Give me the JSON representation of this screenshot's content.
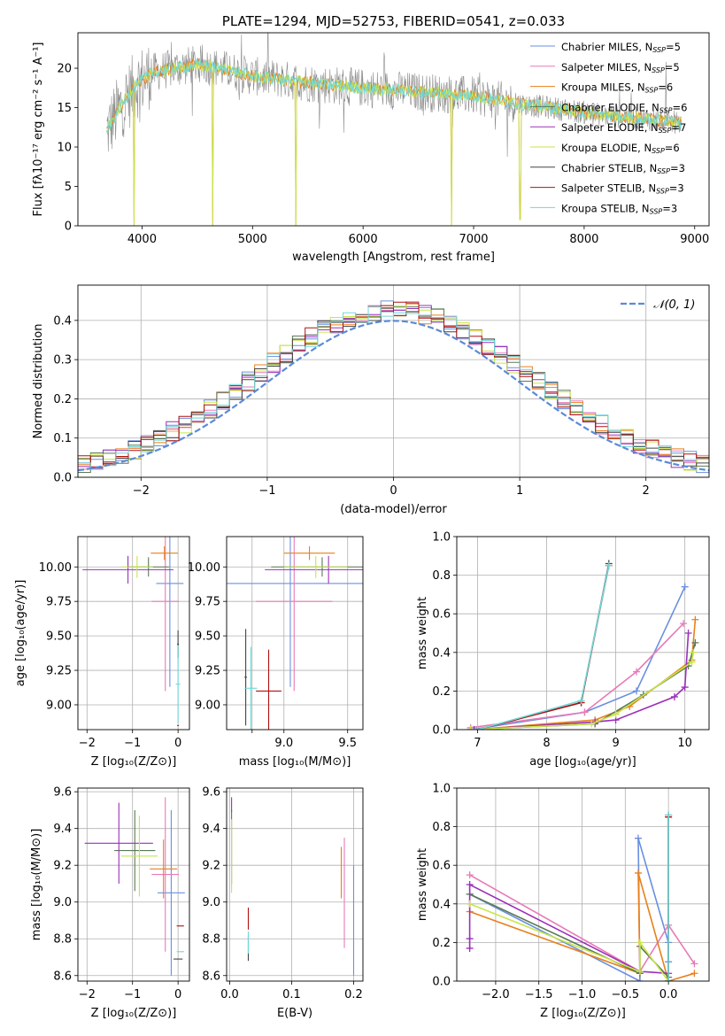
{
  "colors": {
    "Chabrier MILES": "#6a8fe0",
    "Salpeter MILES": "#e87ab8",
    "Kroupa MILES": "#e8801e",
    "Chabrier ELODIE": "#5a7a55",
    "Salpeter ELODIE": "#9b30b8",
    "Kroupa ELODIE": "#c8e64a",
    "Chabrier STELIB": "#444444",
    "Salpeter STELIB": "#b01010",
    "Kroupa STELIB": "#70d8d8",
    "normal": "#5b8ad8",
    "grey_spectrum": "#8c8c8c"
  },
  "chart_data": [
    {
      "id": "spectrum",
      "type": "line",
      "title": "PLATE=1294, MJD=52753, FIBERID=0541, z=0.033",
      "xlabel": "wavelength [Angstrom, rest frame]",
      "ylabel": "Flux [fλ10⁻¹⁷ erg cm⁻² s⁻¹ A⁻¹]",
      "xlim": [
        3420,
        9130
      ],
      "ylim": [
        0,
        24.5
      ],
      "xticks": [
        4000,
        5000,
        6000,
        7000,
        8000,
        9000
      ],
      "yticks": [
        0,
        5,
        10,
        15,
        20
      ],
      "grid": false,
      "legend_position": "top-right",
      "legend": [
        {
          "label": "Chabrier MILES, N",
          "sub": "SSP",
          "value": "=5"
        },
        {
          "label": "Salpeter MILES, N",
          "sub": "SSP",
          "value": "=5"
        },
        {
          "label": "Kroupa MILES, N",
          "sub": "SSP",
          "value": "=6"
        },
        {
          "label": "Chabrier ELODIE, N",
          "sub": "SSP",
          "value": "=6"
        },
        {
          "label": "Salpeter ELODIE, N",
          "sub": "SSP",
          "value": "=7"
        },
        {
          "label": "Kroupa ELODIE, N",
          "sub": "SSP",
          "value": "=6"
        },
        {
          "label": "Chabrier STELIB, N",
          "sub": "SSP",
          "value": "=3"
        },
        {
          "label": "Salpeter STELIB, N",
          "sub": "SSP",
          "value": "=3"
        },
        {
          "label": "Kroupa STELIB, N",
          "sub": "SSP",
          "value": "=3"
        }
      ],
      "continuum": [
        [
          3680,
          12
        ],
        [
          3800,
          15
        ],
        [
          3950,
          18
        ],
        [
          4100,
          19.5
        ],
        [
          4300,
          20
        ],
        [
          4500,
          20.5
        ],
        [
          4700,
          20
        ],
        [
          5000,
          19
        ],
        [
          5300,
          18.5
        ],
        [
          5600,
          18
        ],
        [
          6000,
          17.5
        ],
        [
          6500,
          17
        ],
        [
          7000,
          16.5
        ],
        [
          7400,
          15.5
        ],
        [
          7800,
          14.8
        ],
        [
          8200,
          14
        ],
        [
          8600,
          13.5
        ],
        [
          8900,
          13
        ]
      ],
      "dips": [
        [
          3930,
          0
        ],
        [
          4640,
          0
        ],
        [
          5390,
          0
        ],
        [
          6800,
          0
        ],
        [
          7420,
          0.8
        ]
      ]
    },
    {
      "id": "residuals",
      "type": "bar",
      "xlabel": "(data-model)/error",
      "ylabel": "Normed distribution",
      "xlim": [
        -2.5,
        2.5
      ],
      "ylim": [
        0,
        0.49
      ],
      "xticks": [
        -2,
        -1,
        0,
        1,
        2
      ],
      "yticks": [
        0.0,
        0.1,
        0.2,
        0.3,
        0.4
      ],
      "grid": true,
      "legend_position": "top-right",
      "legend": [
        "𝒩(0, 1)"
      ],
      "bin_width": 0.1,
      "bin_start": -2.5
    },
    {
      "id": "age-vs-Z",
      "type": "scatter",
      "xlabel": "Z [log₁₀(Z/Z⊙)]",
      "ylabel": "age  [log₁₀(age/yr)]",
      "xlim": [
        -2.2,
        0.25
      ],
      "ylim": [
        8.82,
        10.22
      ],
      "xticks": [
        -2,
        -1,
        0
      ],
      "yticks": [
        9.0,
        9.25,
        9.5,
        9.75,
        10.0
      ],
      "grid": true,
      "points": [
        {
          "model": "Chabrier MILES",
          "x": -0.18,
          "y": 9.88,
          "xerr": 0.3,
          "yerr": 0.75
        },
        {
          "model": "Salpeter MILES",
          "x": -0.28,
          "y": 9.75,
          "xerr": 0.3,
          "yerr": 0.65
        },
        {
          "model": "Kroupa MILES",
          "x": -0.3,
          "y": 10.1,
          "xerr": 0.3,
          "yerr": 0.05
        },
        {
          "model": "Chabrier ELODIE",
          "x": -0.65,
          "y": 10.0,
          "xerr": 0.45,
          "yerr": 0.07
        },
        {
          "model": "Salpeter ELODIE",
          "x": -1.1,
          "y": 9.98,
          "xerr": 1.0,
          "yerr": 0.1
        },
        {
          "model": "Kroupa ELODIE",
          "x": -0.9,
          "y": 10.0,
          "xerr": 0.35,
          "yerr": 0.08
        },
        {
          "model": "Chabrier STELIB",
          "x": 0.0,
          "y": 9.44,
          "xerr": 0.02,
          "yerr": 0.1
        },
        {
          "model": "Salpeter STELIB",
          "x": 0.0,
          "y": 8.85,
          "xerr": 0.02,
          "yerr": 0.0
        },
        {
          "model": "Kroupa STELIB",
          "x": 0.0,
          "y": 9.15,
          "xerr": 0.05,
          "yerr": 0.28
        }
      ]
    },
    {
      "id": "age-vs-mass",
      "type": "scatter",
      "xlabel": "mass [log₁₀(M/M⊙)]",
      "ylabel": "",
      "xlim": [
        8.55,
        9.62
      ],
      "ylim": [
        8.82,
        10.22
      ],
      "xticks": [
        9.0,
        9.5
      ],
      "xticklabels": [
        "9.0",
        "9.5"
      ],
      "extra_xtick": {
        "value": 8.75,
        "label": ""
      },
      "yticks": [
        9.0,
        9.25,
        9.5,
        9.75,
        10.0
      ],
      "grid": true,
      "points": [
        {
          "model": "Chabrier MILES",
          "x": 9.05,
          "y": 9.88,
          "xerr": 0.6,
          "yerr": 0.75
        },
        {
          "model": "Salpeter MILES",
          "x": 9.08,
          "y": 9.75,
          "xerr": 0.3,
          "yerr": 0.65
        },
        {
          "model": "Kroupa MILES",
          "x": 9.2,
          "y": 10.1,
          "xerr": 0.2,
          "yerr": 0.05
        },
        {
          "model": "Chabrier ELODIE",
          "x": 9.3,
          "y": 10.0,
          "xerr": 0.4,
          "yerr": 0.07
        },
        {
          "model": "Salpeter ELODIE",
          "x": 9.35,
          "y": 9.98,
          "xerr": 0.5,
          "yerr": 0.1
        },
        {
          "model": "Kroupa ELODIE",
          "x": 9.25,
          "y": 10.0,
          "xerr": 0.25,
          "yerr": 0.08
        },
        {
          "model": "Chabrier STELIB",
          "x": 8.7,
          "y": 9.2,
          "xerr": 0.01,
          "yerr": 0.35
        },
        {
          "model": "Salpeter STELIB",
          "x": 8.88,
          "y": 9.1,
          "xerr": 0.1,
          "yerr": 0.3
        },
        {
          "model": "Kroupa STELIB",
          "x": 8.74,
          "y": 9.12,
          "xerr": 0.05,
          "yerr": 0.3
        }
      ]
    },
    {
      "id": "mass-weight-vs-age",
      "type": "line",
      "xlabel": "age  [log₁₀(age/yr)]",
      "ylabel": "mass weight",
      "xlim": [
        6.7,
        10.35
      ],
      "ylim": [
        0,
        1.0
      ],
      "xticks": [
        7,
        8,
        9,
        10
      ],
      "yticks": [
        0.0,
        0.2,
        0.4,
        0.6,
        0.8,
        1.0
      ],
      "grid": true,
      "series": [
        {
          "model": "Chabrier MILES",
          "x": [
            6.9,
            8.55,
            9.3,
            10.0
          ],
          "y": [
            0.0,
            0.09,
            0.2,
            0.74
          ]
        },
        {
          "model": "Salpeter MILES",
          "x": [
            6.9,
            8.55,
            9.3,
            9.98
          ],
          "y": [
            0.01,
            0.09,
            0.3,
            0.55
          ]
        },
        {
          "model": "Kroupa MILES",
          "x": [
            6.95,
            8.7,
            9.2,
            10.1,
            10.15
          ],
          "y": [
            0.0,
            0.05,
            0.12,
            0.36,
            0.57
          ]
        },
        {
          "model": "Chabrier ELODIE",
          "x": [
            6.9,
            8.7,
            9.4,
            10.05,
            10.15
          ],
          "y": [
            0.0,
            0.03,
            0.18,
            0.33,
            0.45
          ]
        },
        {
          "model": "Salpeter ELODIE",
          "x": [
            6.95,
            8.7,
            9.0,
            9.85,
            10.0,
            10.05
          ],
          "y": [
            0.0,
            0.04,
            0.05,
            0.17,
            0.22,
            0.5
          ]
        },
        {
          "model": "Kroupa ELODIE",
          "x": [
            6.9,
            8.65,
            9.0,
            10.1,
            10.12
          ],
          "y": [
            0.0,
            0.03,
            0.08,
            0.35,
            0.4
          ]
        },
        {
          "model": "Chabrier STELIB",
          "x": [
            7.0,
            8.5,
            8.9
          ],
          "y": [
            0.0,
            0.14,
            0.86
          ]
        },
        {
          "model": "Salpeter STELIB",
          "x": [
            7.0,
            8.5,
            8.9
          ],
          "y": [
            0.0,
            0.14,
            0.85
          ]
        },
        {
          "model": "Kroupa STELIB",
          "x": [
            7.0,
            8.5,
            8.9
          ],
          "y": [
            0.0,
            0.15,
            0.85
          ]
        }
      ]
    },
    {
      "id": "mass-vs-Z",
      "type": "scatter",
      "xlabel": "Z [log₁₀(Z/Z⊙)]",
      "ylabel": "mass [log₁₀(M/M⊙)]",
      "xlim": [
        -2.2,
        0.25
      ],
      "ylim": [
        8.57,
        9.62
      ],
      "xticks": [
        -2,
        -1,
        0
      ],
      "yticks": [
        8.6,
        8.8,
        9.0,
        9.2,
        9.4,
        9.6
      ],
      "grid": true,
      "points": [
        {
          "model": "Chabrier MILES",
          "x": -0.15,
          "y": 9.05,
          "xerr": 0.3,
          "yerr": 0.45
        },
        {
          "model": "Salpeter MILES",
          "x": -0.28,
          "y": 9.15,
          "xerr": 0.3,
          "yerr": 0.42
        },
        {
          "model": "Kroupa MILES",
          "x": -0.32,
          "y": 9.18,
          "xerr": 0.3,
          "yerr": 0.16
        },
        {
          "model": "Chabrier ELODIE",
          "x": -0.95,
          "y": 9.28,
          "xerr": 0.45,
          "yerr": 0.22
        },
        {
          "model": "Salpeter ELODIE",
          "x": -1.3,
          "y": 9.32,
          "xerr": 0.75,
          "yerr": 0.22
        },
        {
          "model": "Kroupa ELODIE",
          "x": -0.85,
          "y": 9.25,
          "xerr": 0.4,
          "yerr": 0.22
        },
        {
          "model": "Chabrier STELIB",
          "x": 0.0,
          "y": 8.69,
          "xerr": 0.1,
          "yerr": 0.0
        },
        {
          "model": "Salpeter STELIB",
          "x": 0.05,
          "y": 8.87,
          "xerr": 0.08,
          "yerr": 0.0
        },
        {
          "model": "Kroupa STELIB",
          "x": 0.05,
          "y": 8.73,
          "xerr": 0.08,
          "yerr": 0.0
        }
      ]
    },
    {
      "id": "mass-vs-EBV",
      "type": "scatter",
      "xlabel": "E(B-V)",
      "ylabel": "",
      "xlim": [
        -0.005,
        0.215
      ],
      "ylim": [
        8.57,
        9.62
      ],
      "xticks": [
        0.0,
        0.1,
        0.2
      ],
      "yticks": [
        8.6,
        8.8,
        9.0,
        9.2,
        9.4,
        9.6
      ],
      "grid": true,
      "points": [
        {
          "model": "Chabrier MILES",
          "x": 0.2,
          "y": 8.9,
          "xerr": 0,
          "yerr": 0.3
        },
        {
          "model": "Salpeter MILES",
          "x": 0.185,
          "y": 9.05,
          "xerr": 0,
          "yerr": 0.3
        },
        {
          "model": "Kroupa MILES",
          "x": 0.18,
          "y": 9.16,
          "xerr": 0,
          "yerr": 0.14
        },
        {
          "model": "Chabrier ELODIE",
          "x": 0.003,
          "y": 9.3,
          "xerr": 0,
          "yerr": 0.2
        },
        {
          "model": "Salpeter ELODIE",
          "x": 0.003,
          "y": 9.53,
          "xerr": 0,
          "yerr": 0.04
        },
        {
          "model": "Kroupa ELODIE",
          "x": 0.003,
          "y": 9.25,
          "xerr": 0,
          "yerr": 0.2
        },
        {
          "model": "Chabrier STELIB",
          "x": 0.03,
          "y": 8.75,
          "xerr": 0,
          "yerr": 0.07
        },
        {
          "model": "Salpeter STELIB",
          "x": 0.03,
          "y": 8.91,
          "xerr": 0,
          "yerr": 0.06
        },
        {
          "model": "Kroupa STELIB",
          "x": 0.03,
          "y": 8.78,
          "xerr": 0,
          "yerr": 0.06
        }
      ]
    },
    {
      "id": "mass-weight-vs-Z",
      "type": "line",
      "xlabel": "Z [log₁₀(Z/Z⊙)]",
      "ylabel": "mass weight",
      "xlim": [
        -2.45,
        0.47
      ],
      "ylim": [
        0,
        1.0
      ],
      "xticks": [
        -2.0,
        -1.5,
        -1.0,
        -0.5,
        0.0
      ],
      "xticklabels": [
        "−2.0",
        "−1.5",
        "−1.0",
        "−0.5",
        "0.0"
      ],
      "yticks": [
        0.0,
        0.2,
        0.4,
        0.6,
        0.8,
        1.0
      ],
      "grid": true,
      "series": [
        {
          "model": "Chabrier MILES",
          "x": [
            -2.3,
            -0.33,
            -0.35,
            0.0,
            0.0
          ],
          "y": [
            0.45,
            0.0,
            0.74,
            0.2,
            0.1
          ]
        },
        {
          "model": "Salpeter MILES",
          "x": [
            -2.3,
            -0.33,
            0.0,
            0.3
          ],
          "y": [
            0.55,
            0.05,
            0.29,
            0.09
          ]
        },
        {
          "model": "Kroupa MILES",
          "x": [
            -2.3,
            -0.33,
            -0.35,
            0.0,
            0.3
          ],
          "y": [
            0.36,
            0.04,
            0.56,
            0.0,
            0.04
          ]
        },
        {
          "model": "Chabrier ELODIE",
          "x": [
            -2.3,
            -0.33,
            -0.33,
            0.0
          ],
          "y": [
            0.45,
            0.04,
            0.18,
            0.02
          ]
        },
        {
          "model": "Salpeter ELODIE",
          "x": [
            -2.3,
            -2.3,
            -2.3,
            -0.33,
            0.0
          ],
          "y": [
            0.17,
            0.22,
            0.5,
            0.05,
            0.04
          ]
        },
        {
          "model": "Kroupa ELODIE",
          "x": [
            -2.3,
            -0.33,
            -0.33,
            0.0
          ],
          "y": [
            0.4,
            0.05,
            0.2,
            0.0
          ]
        },
        {
          "model": "Chabrier STELIB",
          "x": [
            0.0,
            0.0
          ],
          "y": [
            0.0,
            0.86
          ]
        },
        {
          "model": "Salpeter STELIB",
          "x": [
            0.0,
            0.0
          ],
          "y": [
            0.0,
            0.85
          ]
        },
        {
          "model": "Kroupa STELIB",
          "x": [
            0.0,
            0.0
          ],
          "y": [
            0.0,
            0.86
          ]
        }
      ]
    }
  ]
}
